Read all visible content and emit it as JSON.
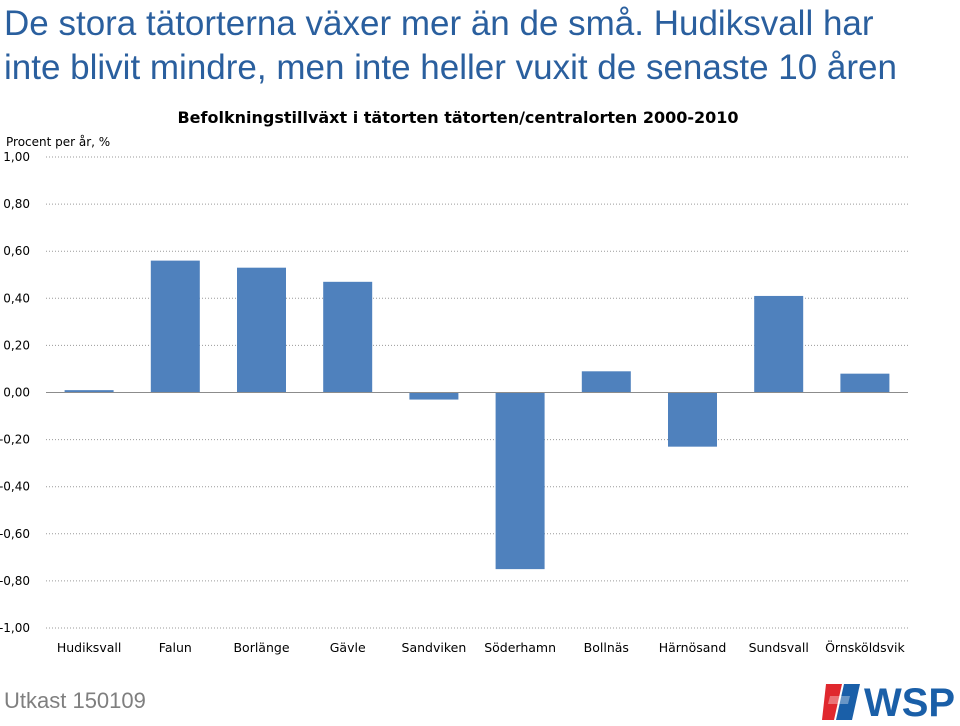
{
  "headline": {
    "line1": "De stora tätorterna växer mer än de små. Hudiksvall har",
    "line2": "inte blivit mindre, men inte heller vuxit de senaste 10 åren"
  },
  "chart_data": {
    "type": "bar",
    "title": "Befolkningstillväxt i tätorten tätorten/centralorten 2000-2010",
    "ylabel": "Procent per år, %",
    "xlabel": "",
    "ylim": [
      -1.0,
      1.0
    ],
    "yticks": [
      "1,00",
      "0,80",
      "0,60",
      "0,40",
      "0,20",
      "0,00",
      "-0,20",
      "-0,40",
      "-0,60",
      "-0,80",
      "-1,00"
    ],
    "ytick_values": [
      1.0,
      0.8,
      0.6,
      0.4,
      0.2,
      0.0,
      -0.2,
      -0.4,
      -0.6,
      -0.8,
      -1.0
    ],
    "grid": true,
    "bar_color": "#4f81bd",
    "categories": [
      "Hudiksvall",
      "Falun",
      "Borlänge",
      "Gävle",
      "Sandviken",
      "Söderhamn",
      "Bollnäs",
      "Härnösand",
      "Sundsvall",
      "Örnsköldsvik"
    ],
    "values": [
      0.01,
      0.56,
      0.53,
      0.47,
      -0.03,
      -0.75,
      0.09,
      -0.23,
      0.41,
      0.08
    ]
  },
  "footer": {
    "draft_label": "Utkast 150109"
  },
  "logo": {
    "text": "WSP",
    "colors": {
      "text": "#1a5fa8",
      "red": "#e0282e",
      "blue": "#1a5fa8"
    }
  }
}
